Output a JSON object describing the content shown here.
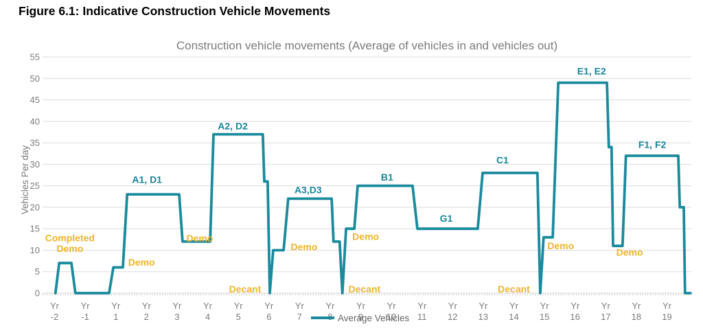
{
  "figure_title": "Figure 6.1: Indicative Construction Vehicle Movements",
  "chart_data": {
    "type": "line",
    "title": "Construction vehicle movements (Average of vehicles in and vehicles out)",
    "ylabel": "Vehicles Per day",
    "xlabel": "",
    "ylim": [
      0,
      55
    ],
    "yticks": [
      0,
      5,
      10,
      15,
      20,
      25,
      30,
      35,
      40,
      45,
      50,
      55
    ],
    "grid": true,
    "legend": {
      "label": "Average Vehicles",
      "position": "bottom-center"
    },
    "x_categories": [
      "Yr -2",
      "Yr -1",
      "Yr 1",
      "Yr 2",
      "Yr 3",
      "Yr 4",
      "Yr 5",
      "Yr 6",
      "Yr 7",
      "Yr 8",
      "Yr 9",
      "Yr 10",
      "Yr 11",
      "Yr 12",
      "Yr 13",
      "Yr 14",
      "Yr 15",
      "Yr 16",
      "Yr 17",
      "Yr 18",
      "Yr 19"
    ],
    "series": [
      {
        "name": "Average Vehicles",
        "color": "#1A8A9D",
        "points": [
          [
            0.03,
            0
          ],
          [
            0.15,
            7
          ],
          [
            0.55,
            7
          ],
          [
            0.68,
            0
          ],
          [
            1.78,
            0
          ],
          [
            1.92,
            6
          ],
          [
            2.23,
            6
          ],
          [
            2.37,
            23
          ],
          [
            4.07,
            23
          ],
          [
            4.18,
            12
          ],
          [
            5.08,
            12
          ],
          [
            5.19,
            37
          ],
          [
            6.8,
            37
          ],
          [
            6.85,
            26
          ],
          [
            6.96,
            26
          ],
          [
            7.03,
            0
          ],
          [
            7.14,
            10
          ],
          [
            7.48,
            10
          ],
          [
            7.63,
            22
          ],
          [
            9.05,
            22
          ],
          [
            9.11,
            12
          ],
          [
            9.31,
            12
          ],
          [
            9.4,
            0
          ],
          [
            9.52,
            15
          ],
          [
            9.79,
            15
          ],
          [
            9.9,
            25
          ],
          [
            11.69,
            25
          ],
          [
            11.85,
            15
          ],
          [
            13.82,
            15
          ],
          [
            13.98,
            28
          ],
          [
            15.77,
            28
          ],
          [
            15.86,
            0
          ],
          [
            15.97,
            13
          ],
          [
            16.27,
            13
          ],
          [
            16.45,
            49
          ],
          [
            18.04,
            49
          ],
          [
            18.1,
            34
          ],
          [
            18.19,
            34
          ],
          [
            18.24,
            11
          ],
          [
            18.55,
            11
          ],
          [
            18.66,
            32
          ],
          [
            20.37,
            32
          ],
          [
            20.42,
            20
          ],
          [
            20.55,
            20
          ],
          [
            20.59,
            0
          ],
          [
            20.77,
            0
          ]
        ]
      }
    ],
    "annotations": [
      {
        "text": "Completed Demo",
        "lines": [
          "Completed",
          "Demo"
        ],
        "x": 0.5,
        "y": 11.6,
        "color": "amber"
      },
      {
        "text": "Demo",
        "x": 2.84,
        "y": 7.2,
        "color": "amber"
      },
      {
        "text": "A1, D1",
        "x": 3.02,
        "y": 26.5,
        "color": "teal"
      },
      {
        "text": "Demo",
        "x": 4.74,
        "y": 12.8,
        "color": "amber"
      },
      {
        "text": "A2, D2",
        "x": 5.82,
        "y": 38.9,
        "color": "teal"
      },
      {
        "text": "Decant",
        "x": 6.22,
        "y": 0.95,
        "color": "amber"
      },
      {
        "text": "Demo",
        "x": 8.15,
        "y": 10.8,
        "color": "amber"
      },
      {
        "text": "A3,D3",
        "x": 8.28,
        "y": 24.1,
        "color": "teal"
      },
      {
        "text": "Decant",
        "x": 10.12,
        "y": 0.95,
        "color": "amber"
      },
      {
        "text": "Demo",
        "x": 10.16,
        "y": 13.2,
        "color": "amber"
      },
      {
        "text": "B1",
        "x": 10.86,
        "y": 27.0,
        "color": "teal"
      },
      {
        "text": "G1",
        "x": 12.79,
        "y": 17.4,
        "color": "teal"
      },
      {
        "text": "C1",
        "x": 14.63,
        "y": 31.0,
        "color": "teal"
      },
      {
        "text": "Decant",
        "x": 15.0,
        "y": 0.95,
        "color": "amber"
      },
      {
        "text": "Demo",
        "x": 16.53,
        "y": 11.0,
        "color": "amber"
      },
      {
        "text": "E1, E2",
        "x": 17.54,
        "y": 51.7,
        "color": "teal"
      },
      {
        "text": "Demo",
        "x": 18.78,
        "y": 9.5,
        "color": "amber"
      },
      {
        "text": "F1, F2",
        "x": 19.52,
        "y": 34.6,
        "color": "teal"
      }
    ],
    "palette": {
      "line": "#1A8A9D",
      "teal": "#17869B",
      "amber": "#EFB42D",
      "grid": "#DBDBDB",
      "tick": "#C8C8C8",
      "axis_text": "#7B7B7B",
      "title_text": "#7A7A7A",
      "legend_text": "#666666",
      "heading_text": "#000000",
      "background": "#FFFFFF"
    }
  }
}
